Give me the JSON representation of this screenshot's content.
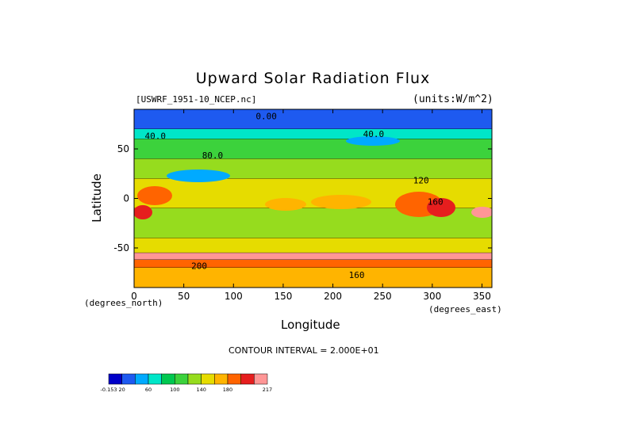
{
  "chart_data": {
    "type": "heatmap",
    "title": "Upward Solar Radiation Flux",
    "source_label": "[USWRF_1951-10_NCEP.nc]",
    "units_label": "(units:W/m^2)",
    "xlabel": "Longitude",
    "ylabel": "Latitude",
    "x_unit_label": "(degrees_east)",
    "y_unit_label": "(degrees_north)",
    "xlim": [
      0,
      360
    ],
    "ylim": [
      -90,
      90
    ],
    "x_ticks": [
      0,
      50,
      100,
      150,
      200,
      250,
      300,
      350
    ],
    "y_ticks": [
      -50,
      0,
      50
    ],
    "contour_interval_text": "CONTOUR INTERVAL = 2.000E+01",
    "contour_labels": [
      "0.00",
      "40.0",
      "40.0",
      "80.0",
      "120",
      "160",
      "200",
      "160"
    ],
    "colorbar": {
      "tick_labels": [
        "-0.153",
        "20",
        "60",
        "100",
        "140",
        "180",
        "217"
      ],
      "colors": [
        "#0000c8",
        "#1e5af0",
        "#00aaff",
        "#00e6c8",
        "#00c850",
        "#3cd23c",
        "#96dc1e",
        "#e6dc00",
        "#ffb400",
        "#ff6400",
        "#e61e1e",
        "#ff9696"
      ]
    },
    "zonal_bands": [
      {
        "lat": [
          70,
          90
        ],
        "value": 10
      },
      {
        "lat": [
          60,
          70
        ],
        "value": 45
      },
      {
        "lat": [
          40,
          60
        ],
        "value": 85
      },
      {
        "lat": [
          20,
          40
        ],
        "value": 115
      },
      {
        "lat": [
          -10,
          20
        ],
        "value": 125
      },
      {
        "lat": [
          -40,
          -10
        ],
        "value": 105
      },
      {
        "lat": [
          -55,
          -40
        ],
        "value": 130
      },
      {
        "lat": [
          -62,
          -55
        ],
        "value": 205
      },
      {
        "lat": [
          -70,
          -62
        ],
        "value": 170
      },
      {
        "lat": [
          -90,
          -70
        ],
        "value": 150
      }
    ]
  }
}
